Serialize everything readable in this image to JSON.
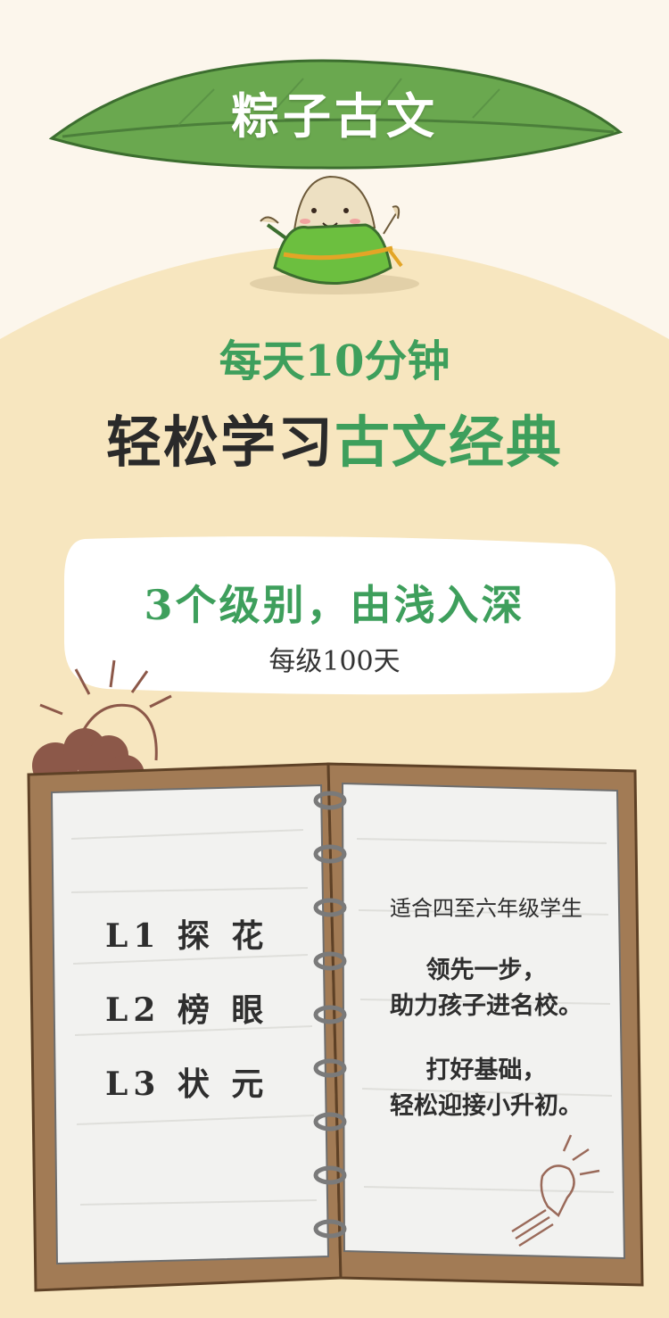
{
  "header": {
    "title": "粽子古文"
  },
  "tagline": {
    "line1": "每天10分钟",
    "line2_dark": "轻松学习",
    "line2_accent": "古文经典"
  },
  "levels_card": {
    "heading": "3个级别，由浅入深",
    "sub": "每级100天"
  },
  "notebook": {
    "levels": [
      {
        "label": "L1 探 花"
      },
      {
        "label": "L2 榜 眼"
      },
      {
        "label": "L3 状 元"
      }
    ],
    "notes": {
      "audience": "适合四至六年级学生",
      "benefit1_line1": "领先一步，",
      "benefit1_line2": "助力孩子进名校。",
      "benefit2_line1": "打好基础，",
      "benefit2_line2": "轻松迎接小升初。"
    }
  },
  "colors": {
    "accent_green": "#3e9f5c",
    "leaf_green": "#6aa84f",
    "cream_panel": "#f7e6bf",
    "notebook_brown": "#a27b55",
    "page_paper": "#f2f2f0",
    "cloud_brown": "#8c5849"
  },
  "icons": [
    "leaf-icon",
    "zongzi-mascot-icon",
    "sun-icon",
    "cloud-icon",
    "spiral-binding-icon",
    "lightbulb-icon"
  ]
}
